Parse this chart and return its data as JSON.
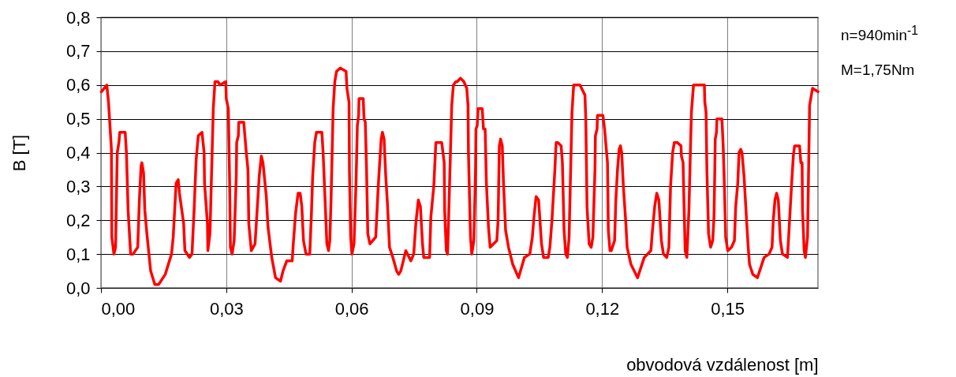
{
  "chart_data": {
    "type": "line",
    "xlabel": "obvodová vzdálenost [m]",
    "ylabel": "B [T]",
    "annotations": [
      "n=940min$^{-1}$",
      "M=1,75Nm"
    ],
    "x": [
      0.0001,
      0.0014,
      0.0018,
      0.0025,
      0.0026,
      0.0031,
      0.0035,
      0.0039,
      0.0043,
      0.0045,
      0.0058,
      0.0061,
      0.0065,
      0.0071,
      0.0077,
      0.0088,
      0.0092,
      0.0096,
      0.0098,
      0.0102,
      0.0105,
      0.011,
      0.0119,
      0.0129,
      0.0138,
      0.0154,
      0.0169,
      0.0173,
      0.018,
      0.0185,
      0.0188,
      0.0198,
      0.0201,
      0.0212,
      0.0218,
      0.0223,
      0.0228,
      0.0233,
      0.0242,
      0.0247,
      0.0248,
      0.0255,
      0.0256,
      0.0261,
      0.0269,
      0.0273,
      0.028,
      0.0285,
      0.0299,
      0.03,
      0.0305,
      0.0308,
      0.031,
      0.0314,
      0.0319,
      0.0324,
      0.0325,
      0.0329,
      0.033,
      0.0342,
      0.0344,
      0.0348,
      0.0352,
      0.0354,
      0.036,
      0.0369,
      0.0374,
      0.0379,
      0.0384,
      0.0388,
      0.0396,
      0.04,
      0.0409,
      0.0418,
      0.043,
      0.0436,
      0.0445,
      0.0458,
      0.046,
      0.0466,
      0.0472,
      0.0477,
      0.0481,
      0.0485,
      0.0491,
      0.05,
      0.0504,
      0.0507,
      0.0512,
      0.0516,
      0.0529,
      0.0532,
      0.0535,
      0.0541,
      0.0545,
      0.0548,
      0.0551,
      0.0556,
      0.056,
      0.0564,
      0.0573,
      0.0587,
      0.0589,
      0.0594,
      0.0595,
      0.0598,
      0.0601,
      0.0606,
      0.0611,
      0.0614,
      0.0617,
      0.0618,
      0.0628,
      0.063,
      0.0633,
      0.0636,
      0.0639,
      0.0644,
      0.0658,
      0.0664,
      0.0671,
      0.0674,
      0.0678,
      0.0682,
      0.0686,
      0.0691,
      0.0699,
      0.0708,
      0.0713,
      0.0718,
      0.073,
      0.0742,
      0.0749,
      0.0754,
      0.076,
      0.0765,
      0.077,
      0.0773,
      0.0787,
      0.079,
      0.0797,
      0.0802,
      0.0816,
      0.0819,
      0.0822,
      0.0823,
      0.0827,
      0.083,
      0.0834,
      0.084,
      0.0844,
      0.085,
      0.0853,
      0.0861,
      0.0869,
      0.0876,
      0.0879,
      0.088,
      0.0885,
      0.0888,
      0.0893,
      0.0897,
      0.0898,
      0.0901,
      0.0903,
      0.0913,
      0.0916,
      0.092,
      0.0923,
      0.0928,
      0.0932,
      0.0948,
      0.0951,
      0.0954,
      0.0957,
      0.0961,
      0.0964,
      0.0969,
      0.0976,
      0.0986,
      0.1,
      0.1014,
      0.1027,
      0.1033,
      0.1037,
      0.1042,
      0.1048,
      0.1055,
      0.106,
      0.1071,
      0.1075,
      0.108,
      0.1087,
      0.109,
      0.1094,
      0.1102,
      0.1105,
      0.1109,
      0.1113,
      0.1117,
      0.1121,
      0.1128,
      0.1132,
      0.1134,
      0.1147,
      0.1159,
      0.1161,
      0.1164,
      0.1169,
      0.1174,
      0.1178,
      0.1183,
      0.1184,
      0.1188,
      0.1189,
      0.1194,
      0.1202,
      0.1206,
      0.1213,
      0.1215,
      0.1219,
      0.1222,
      0.123,
      0.1233,
      0.1237,
      0.1241,
      0.1244,
      0.1247,
      0.1251,
      0.1257,
      0.126,
      0.1269,
      0.1277,
      0.1285,
      0.1301,
      0.1317,
      0.132,
      0.1326,
      0.1331,
      0.1336,
      0.1342,
      0.1347,
      0.1355,
      0.136,
      0.1364,
      0.1369,
      0.1373,
      0.138,
      0.1389,
      0.139,
      0.1394,
      0.1396,
      0.1399,
      0.1403,
      0.1408,
      0.1411,
      0.1414,
      0.1419,
      0.143,
      0.144,
      0.1445,
      0.1446,
      0.1449,
      0.1451,
      0.1455,
      0.146,
      0.1465,
      0.1468,
      0.147,
      0.1471,
      0.1474,
      0.1475,
      0.1487,
      0.149,
      0.1493,
      0.1496,
      0.1501,
      0.151,
      0.1517,
      0.152,
      0.1525,
      0.1528,
      0.1532,
      0.1535,
      0.154,
      0.1546,
      0.155,
      0.1553,
      0.1561,
      0.1572,
      0.1588,
      0.16,
      0.1607,
      0.161,
      0.1614,
      0.1618,
      0.1622,
      0.1627,
      0.1632,
      0.1644,
      0.1649,
      0.1655,
      0.1658,
      0.1661,
      0.1673,
      0.1676,
      0.1679,
      0.168,
      0.1684,
      0.1687,
      0.1692,
      0.1697,
      0.1704,
      0.1717
    ],
    "series": [
      {
        "color": "#ff0000",
        "values": [
          0.58,
          0.6,
          0.55,
          0.41,
          0.15,
          0.1,
          0.12,
          0.4,
          0.43,
          0.46,
          0.46,
          0.4,
          0.23,
          0.1,
          0.1,
          0.12,
          0.26,
          0.36,
          0.37,
          0.34,
          0.23,
          0.16,
          0.05,
          0.01,
          0.01,
          0.04,
          0.1,
          0.15,
          0.31,
          0.32,
          0.28,
          0.19,
          0.11,
          0.09,
          0.1,
          0.23,
          0.38,
          0.45,
          0.46,
          0.4,
          0.31,
          0.19,
          0.11,
          0.16,
          0.53,
          0.61,
          0.61,
          0.6,
          0.61,
          0.56,
          0.53,
          0.32,
          0.12,
          0.1,
          0.14,
          0.33,
          0.43,
          0.45,
          0.49,
          0.49,
          0.46,
          0.4,
          0.35,
          0.19,
          0.11,
          0.13,
          0.23,
          0.33,
          0.39,
          0.37,
          0.27,
          0.18,
          0.09,
          0.03,
          0.02,
          0.05,
          0.08,
          0.08,
          0.12,
          0.22,
          0.28,
          0.28,
          0.24,
          0.14,
          0.1,
          0.1,
          0.22,
          0.33,
          0.43,
          0.46,
          0.46,
          0.4,
          0.31,
          0.13,
          0.11,
          0.14,
          0.26,
          0.53,
          0.61,
          0.64,
          0.65,
          0.64,
          0.59,
          0.55,
          0.35,
          0.15,
          0.1,
          0.13,
          0.32,
          0.48,
          0.51,
          0.56,
          0.56,
          0.5,
          0.49,
          0.35,
          0.16,
          0.13,
          0.15,
          0.3,
          0.44,
          0.46,
          0.44,
          0.33,
          0.25,
          0.12,
          0.09,
          0.05,
          0.04,
          0.05,
          0.11,
          0.08,
          0.1,
          0.19,
          0.26,
          0.24,
          0.13,
          0.09,
          0.09,
          0.21,
          0.3,
          0.43,
          0.43,
          0.4,
          0.37,
          0.23,
          0.11,
          0.1,
          0.27,
          0.54,
          0.6,
          0.61,
          0.61,
          0.62,
          0.61,
          0.59,
          0.54,
          0.4,
          0.15,
          0.1,
          0.14,
          0.35,
          0.47,
          0.48,
          0.53,
          0.53,
          0.47,
          0.47,
          0.31,
          0.18,
          0.12,
          0.14,
          0.2,
          0.42,
          0.44,
          0.42,
          0.31,
          0.17,
          0.12,
          0.07,
          0.03,
          0.09,
          0.1,
          0.15,
          0.21,
          0.27,
          0.26,
          0.13,
          0.09,
          0.09,
          0.12,
          0.2,
          0.35,
          0.43,
          0.43,
          0.42,
          0.37,
          0.17,
          0.1,
          0.09,
          0.15,
          0.52,
          0.6,
          0.6,
          0.6,
          0.57,
          0.5,
          0.24,
          0.13,
          0.12,
          0.15,
          0.35,
          0.45,
          0.47,
          0.51,
          0.51,
          0.51,
          0.47,
          0.37,
          0.17,
          0.11,
          0.11,
          0.14,
          0.26,
          0.35,
          0.41,
          0.42,
          0.4,
          0.3,
          0.19,
          0.12,
          0.07,
          0.05,
          0.03,
          0.09,
          0.11,
          0.16,
          0.24,
          0.28,
          0.26,
          0.14,
          0.1,
          0.09,
          0.12,
          0.3,
          0.4,
          0.43,
          0.43,
          0.42,
          0.39,
          0.37,
          0.26,
          0.11,
          0.09,
          0.23,
          0.38,
          0.52,
          0.6,
          0.6,
          0.6,
          0.6,
          0.55,
          0.52,
          0.35,
          0.16,
          0.12,
          0.14,
          0.21,
          0.35,
          0.44,
          0.46,
          0.5,
          0.5,
          0.42,
          0.3,
          0.15,
          0.11,
          0.12,
          0.14,
          0.24,
          0.31,
          0.4,
          0.41,
          0.4,
          0.33,
          0.2,
          0.12,
          0.07,
          0.04,
          0.03,
          0.09,
          0.1,
          0.12,
          0.2,
          0.26,
          0.28,
          0.26,
          0.14,
          0.1,
          0.09,
          0.2,
          0.33,
          0.39,
          0.42,
          0.42,
          0.37,
          0.37,
          0.23,
          0.11,
          0.09,
          0.15,
          0.54,
          0.59,
          0.58
        ]
      }
    ],
    "xlim": [
      0,
      0.1717
    ],
    "xticks": [
      {
        "value": 0,
        "label": "0,00"
      },
      {
        "value": 0.03,
        "label": "0,03"
      },
      {
        "value": 0.06,
        "label": "0,06"
      },
      {
        "value": 0.09,
        "label": "0,09"
      },
      {
        "value": 0.12,
        "label": "0,12"
      },
      {
        "value": 0.15,
        "label": "0,15"
      }
    ],
    "ylim": [
      0,
      0.8
    ],
    "yticks": [
      {
        "value": 0,
        "label": "0,0"
      },
      {
        "value": 0.1,
        "label": "0,1"
      },
      {
        "value": 0.2,
        "label": "0,2"
      },
      {
        "value": 0.3,
        "label": "0,3"
      },
      {
        "value": 0.4,
        "label": "0,4"
      },
      {
        "value": 0.5,
        "label": "0,5"
      },
      {
        "value": 0.6,
        "label": "0,6"
      },
      {
        "value": 0.7,
        "label": "0,7"
      },
      {
        "value": 0.8,
        "label": "0,8"
      }
    ],
    "grid": true
  }
}
